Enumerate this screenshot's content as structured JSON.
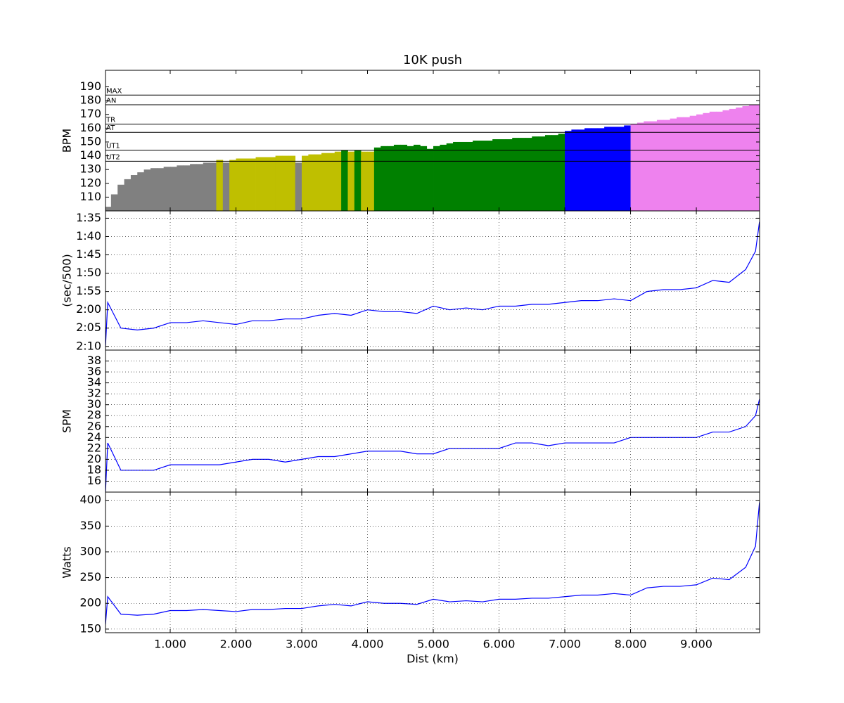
{
  "chart_data": [
    {
      "type": "bar",
      "title": "10K push",
      "ylabel": "BPM",
      "x": [
        0.05,
        0.15,
        0.25,
        0.35,
        0.45,
        0.55,
        0.65,
        0.75,
        0.85,
        0.95,
        1.05,
        1.15,
        1.25,
        1.35,
        1.45,
        1.55,
        1.65,
        1.75,
        1.85,
        1.95,
        2.05,
        2.15,
        2.25,
        2.35,
        2.45,
        2.55,
        2.65,
        2.75,
        2.85,
        2.95,
        3.05,
        3.15,
        3.25,
        3.35,
        3.45,
        3.55,
        3.65,
        3.75,
        3.85,
        3.95,
        4.05,
        4.15,
        4.25,
        4.35,
        4.45,
        4.55,
        4.65,
        4.75,
        4.85,
        4.95,
        5.05,
        5.15,
        5.25,
        5.35,
        5.45,
        5.55,
        5.65,
        5.75,
        5.85,
        5.95,
        6.05,
        6.15,
        6.25,
        6.35,
        6.45,
        6.55,
        6.65,
        6.75,
        6.85,
        6.95,
        7.05,
        7.15,
        7.25,
        7.35,
        7.45,
        7.55,
        7.65,
        7.75,
        7.85,
        7.95,
        8.05,
        8.15,
        8.25,
        8.35,
        8.45,
        8.55,
        8.65,
        8.75,
        8.85,
        8.95,
        9.05,
        9.15,
        9.25,
        9.35,
        9.45,
        9.55,
        9.65,
        9.75,
        9.85,
        9.95
      ],
      "values": [
        103,
        112,
        119,
        123,
        126,
        128,
        130,
        131,
        131,
        132,
        132,
        133,
        133,
        134,
        134,
        135,
        135,
        137,
        135,
        137,
        138,
        138,
        138,
        139,
        139,
        139,
        140,
        140,
        140,
        135,
        140,
        141,
        141,
        142,
        142,
        143,
        144,
        143,
        144,
        143,
        143,
        146,
        147,
        147,
        148,
        148,
        147,
        148,
        147,
        145,
        147,
        148,
        149,
        150,
        150,
        150,
        151,
        151,
        151,
        152,
        152,
        152,
        153,
        153,
        153,
        154,
        154,
        155,
        155,
        156,
        158,
        159,
        159,
        160,
        160,
        160,
        161,
        161,
        161,
        162,
        163,
        164,
        165,
        165,
        166,
        166,
        167,
        168,
        168,
        169,
        170,
        171,
        172,
        172,
        173,
        174,
        175,
        176,
        177,
        177
      ],
      "hlines": [
        {
          "value": 136,
          "label": "UT2"
        },
        {
          "value": 144,
          "label": "UT1"
        },
        {
          "value": 157,
          "label": "AT"
        },
        {
          "value": 163,
          "label": "TR"
        },
        {
          "value": 177,
          "label": "AN"
        },
        {
          "value": 184,
          "label": "MAX"
        }
      ],
      "zone_colors": [
        "gray",
        "#bfbf00",
        "green",
        "blue",
        "violet",
        "violet",
        "violet"
      ],
      "xlim": [
        0.016,
        9.962
      ],
      "ylim": [
        100,
        202
      ],
      "yticks": [
        110,
        120,
        130,
        140,
        150,
        160,
        170,
        180,
        190
      ],
      "grid": false
    },
    {
      "type": "line",
      "ylabel": "(sec/500)",
      "color": "blue",
      "x": [
        0.016,
        0.05,
        0.25,
        0.5,
        0.75,
        1,
        1.25,
        1.5,
        1.75,
        2,
        2.25,
        2.5,
        2.75,
        3,
        3.25,
        3.5,
        3.75,
        4,
        4.25,
        4.5,
        4.75,
        5,
        5.25,
        5.5,
        5.75,
        6,
        6.25,
        6.5,
        6.75,
        7,
        7.25,
        7.5,
        7.75,
        8,
        8.25,
        8.5,
        8.75,
        9,
        9.25,
        9.5,
        9.75,
        9.9,
        9.96
      ],
      "values": [
        130,
        118,
        125,
        125.5,
        125,
        123.5,
        123.5,
        123,
        123.5,
        124,
        123,
        123,
        122.5,
        122.5,
        121.5,
        121,
        121.5,
        120,
        120.5,
        120.5,
        121,
        119,
        120,
        119.5,
        120,
        119,
        119,
        118.5,
        118.5,
        118,
        117.5,
        117.5,
        117,
        117.5,
        115,
        114.5,
        114.5,
        114,
        112,
        112.5,
        109,
        104,
        96
      ],
      "xlim": [
        0.016,
        9.962
      ],
      "ylim": [
        131,
        93
      ],
      "yticks": [
        {
          "value": 95,
          "label": "1:35"
        },
        {
          "value": 100,
          "label": "1:40"
        },
        {
          "value": 105,
          "label": "1:45"
        },
        {
          "value": 110,
          "label": "1:50"
        },
        {
          "value": 115,
          "label": "1:55"
        },
        {
          "value": 120,
          "label": "2:00"
        },
        {
          "value": 125,
          "label": "2:05"
        },
        {
          "value": 130,
          "label": "2:10"
        }
      ],
      "grid": true
    },
    {
      "type": "line",
      "ylabel": "SPM",
      "color": "blue",
      "x": [
        0.016,
        0.05,
        0.25,
        0.5,
        0.75,
        1,
        1.25,
        1.5,
        1.75,
        2,
        2.25,
        2.5,
        2.75,
        3,
        3.25,
        3.5,
        3.75,
        4,
        4.25,
        4.5,
        4.75,
        5,
        5.25,
        5.5,
        5.75,
        6,
        6.25,
        6.5,
        6.75,
        7,
        7.25,
        7.5,
        7.75,
        8,
        8.25,
        8.5,
        8.75,
        9,
        9.25,
        9.5,
        9.75,
        9.9,
        9.96
      ],
      "values": [
        14,
        23,
        18,
        18,
        18,
        19,
        19,
        19,
        19,
        19.5,
        20,
        20,
        19.5,
        20,
        20.5,
        20.5,
        21,
        21.5,
        21.5,
        21.5,
        21,
        21,
        22,
        22,
        22,
        22,
        23,
        23,
        22.5,
        23,
        23,
        23,
        23,
        24,
        24,
        24,
        24,
        24,
        25,
        25,
        26,
        28,
        31
      ],
      "xlim": [
        0.016,
        9.962
      ],
      "ylim": [
        14,
        40
      ],
      "yticks": [
        16,
        18,
        20,
        22,
        24,
        26,
        28,
        30,
        32,
        34,
        36,
        38
      ],
      "grid": true
    },
    {
      "type": "line",
      "ylabel": "Watts",
      "xlabel": "Dist (km)",
      "color": "blue",
      "x": [
        0.016,
        0.05,
        0.25,
        0.5,
        0.75,
        1,
        1.25,
        1.5,
        1.75,
        2,
        2.25,
        2.5,
        2.75,
        3,
        3.25,
        3.5,
        3.75,
        4,
        4.25,
        4.5,
        4.75,
        5,
        5.25,
        5.5,
        5.75,
        6,
        6.25,
        6.5,
        6.75,
        7,
        7.25,
        7.5,
        7.75,
        8,
        8.25,
        8.5,
        8.75,
        9,
        9.25,
        9.5,
        9.75,
        9.9,
        9.96
      ],
      "values": [
        159,
        213,
        179,
        177,
        179,
        186,
        186,
        188,
        186,
        184,
        188,
        188,
        190,
        190,
        195,
        198,
        195,
        203,
        200,
        200,
        198,
        208,
        203,
        205,
        203,
        208,
        208,
        210,
        210,
        213,
        216,
        216,
        219,
        216,
        230,
        233,
        233,
        236,
        249,
        246,
        270,
        311,
        396
      ],
      "xlim": [
        0.016,
        9.962
      ],
      "ylim": [
        143,
        416
      ],
      "yticks": [
        150,
        200,
        250,
        300,
        350,
        400
      ],
      "xticks": [
        {
          "value": 1,
          "label": "1.000"
        },
        {
          "value": 2,
          "label": "2.000"
        },
        {
          "value": 3,
          "label": "3.000"
        },
        {
          "value": 4,
          "label": "4.000"
        },
        {
          "value": 5,
          "label": "5.000"
        },
        {
          "value": 6,
          "label": "6.000"
        },
        {
          "value": 7,
          "label": "7.000"
        },
        {
          "value": 8,
          "label": "8.000"
        },
        {
          "value": 9,
          "label": "9.000"
        }
      ],
      "grid": true
    }
  ]
}
